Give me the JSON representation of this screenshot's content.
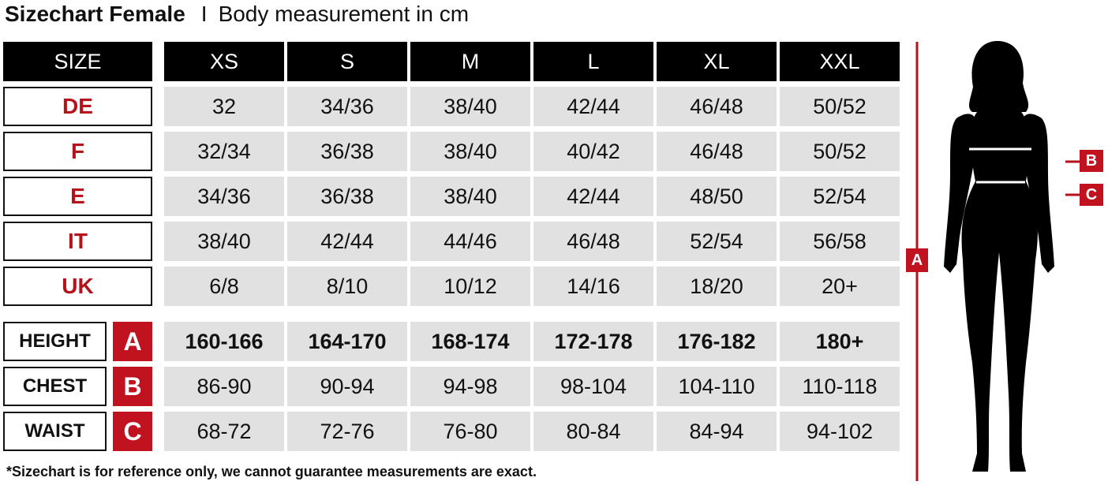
{
  "title": {
    "main": "Sizechart Female",
    "separator": "I",
    "subtitle": "Body measurement in cm"
  },
  "table": {
    "corner_label": "SIZE",
    "sizes": [
      "XS",
      "S",
      "M",
      "L",
      "XL",
      "XXL"
    ],
    "conversion_rows": [
      {
        "label": "DE",
        "values": [
          "32",
          "34/36",
          "38/40",
          "42/44",
          "46/48",
          "50/52"
        ]
      },
      {
        "label": "F",
        "values": [
          "32/34",
          "36/38",
          "38/40",
          "40/42",
          "46/48",
          "50/52"
        ]
      },
      {
        "label": "E",
        "values": [
          "34/36",
          "36/38",
          "38/40",
          "42/44",
          "48/50",
          "52/54"
        ]
      },
      {
        "label": "IT",
        "values": [
          "38/40",
          "42/44",
          "44/46",
          "46/48",
          "52/54",
          "56/58"
        ]
      },
      {
        "label": "UK",
        "values": [
          "6/8",
          "8/10",
          "10/12",
          "14/16",
          "18/20",
          "20+"
        ]
      }
    ],
    "measurement_rows": [
      {
        "label": "HEIGHT",
        "marker": "A",
        "bold": true,
        "values": [
          "160-166",
          "164-170",
          "168-174",
          "172-178",
          "176-182",
          "180+"
        ]
      },
      {
        "label": "CHEST",
        "marker": "B",
        "bold": false,
        "values": [
          "86-90",
          "90-94",
          "94-98",
          "98-104",
          "104-110",
          "110-118"
        ]
      },
      {
        "label": "WAIST",
        "marker": "C",
        "bold": false,
        "values": [
          "68-72",
          "72-76",
          "76-80",
          "80-84",
          "84-94",
          "94-102"
        ]
      }
    ]
  },
  "figure": {
    "markers": {
      "height": "A",
      "chest": "B",
      "waist": "C"
    }
  },
  "footer": "*Sizechart is for reference only, we cannot guarantee measurements are exact.",
  "colors": {
    "accent_red": "#c1121f",
    "label_red": "#b5121b",
    "header_black": "#000000",
    "cell_gray": "#e1e1e1"
  }
}
